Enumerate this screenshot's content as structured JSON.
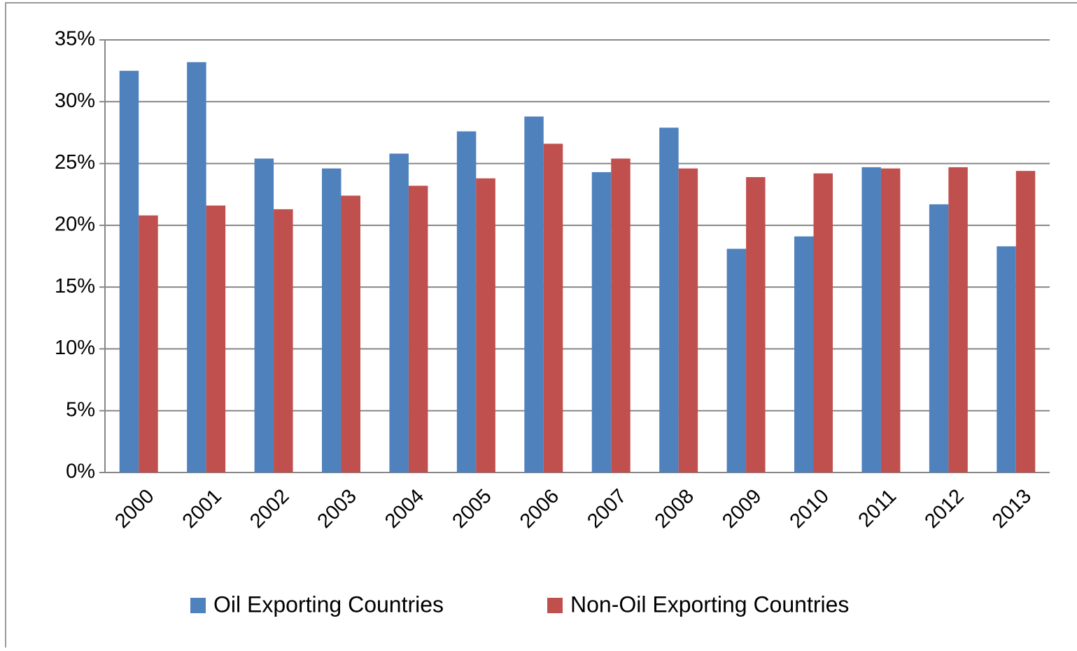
{
  "chart_data": {
    "type": "bar",
    "categories": [
      "2000",
      "2001",
      "2002",
      "2003",
      "2004",
      "2005",
      "2006",
      "2007",
      "2008",
      "2009",
      "2010",
      "2011",
      "2012",
      "2013"
    ],
    "series": [
      {
        "name": "Oil Exporting Countries",
        "color": "#4f81bd",
        "values": [
          32.5,
          33.2,
          25.4,
          24.6,
          25.8,
          27.6,
          28.8,
          24.3,
          27.9,
          18.1,
          19.1,
          24.7,
          21.7,
          18.3
        ]
      },
      {
        "name": "Non-Oil Exporting Countries",
        "color": "#c0504d",
        "values": [
          20.8,
          21.6,
          21.3,
          22.4,
          23.2,
          23.8,
          26.6,
          25.4,
          24.6,
          23.9,
          24.2,
          24.6,
          24.7,
          24.4
        ]
      }
    ],
    "ylim": [
      0,
      35
    ],
    "yticks": [
      {
        "value": 0,
        "label": "0%"
      },
      {
        "value": 5,
        "label": "5%"
      },
      {
        "value": 10,
        "label": "10%"
      },
      {
        "value": 15,
        "label": "15%"
      },
      {
        "value": 20,
        "label": "20%"
      },
      {
        "value": 25,
        "label": "25%"
      },
      {
        "value": 30,
        "label": "30%"
      },
      {
        "value": 35,
        "label": "35%"
      }
    ],
    "grid": true,
    "legend": "bottom"
  }
}
